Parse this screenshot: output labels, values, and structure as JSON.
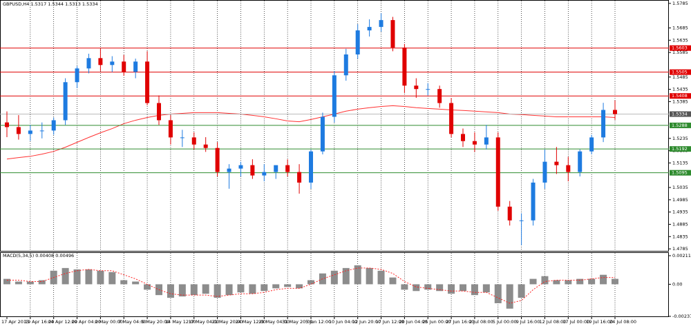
{
  "chart_data": {
    "type": "candlestick",
    "title": "GBPUSD,H4 1.5317 1.5344 1.5313 1.5334",
    "categories": [
      "17 Apr 2013",
      null,
      "19 Apr 16:00",
      null,
      "24 Apr 12:00",
      null,
      "29 Apr 04:00",
      null,
      "2 May 00:00",
      null,
      "7 May 04:00",
      null,
      "9 May 20:00",
      null,
      "14 May 12:00",
      null,
      "17 May 04:00",
      null,
      "21 May 20:00",
      null,
      "24 May 12:00",
      null,
      "29 May 04:00",
      null,
      "31 May 20:00",
      null,
      "5 Jun 12:00",
      null,
      "10 Jun 04:00",
      null,
      "12 Jun 20:00",
      null,
      "17 Jun 12:00",
      null,
      "20 Jun 04:00",
      null,
      "25 Jun 00:00",
      null,
      "27 Jun 16:00",
      null,
      "2 Jul 08:00",
      null,
      "5 Jul 00:00",
      null,
      "9 Jul 16:00",
      null,
      "12 Jul 08:00",
      null,
      "17 Jul 00:00",
      null,
      "19 Jul 16:00",
      null,
      "24 Jul 08:00"
    ],
    "open": [
      1.53,
      1.5281,
      1.5253,
      1.5267,
      1.5267,
      1.5309,
      1.5464,
      1.552,
      1.5562,
      1.5534,
      1.5548,
      1.5506,
      1.5548,
      1.5379,
      1.5309,
      1.5239,
      1.5239,
      1.521,
      1.5196,
      1.5098,
      1.5112,
      1.5126,
      1.5084,
      1.5098,
      1.5126,
      1.5098,
      1.5055,
      1.5182,
      1.5323,
      1.5492,
      1.5577,
      1.5675,
      1.5689,
      1.5717,
      1.5605,
      1.545,
      1.5436,
      1.5436,
      1.5379,
      1.5253,
      1.5224,
      1.521,
      1.5239,
      1.4957,
      1.4901,
      1.4901,
      1.5055,
      1.514,
      1.5126,
      1.5098,
      1.5182,
      1.5239,
      1.5351
    ],
    "high": [
      1.5345,
      1.533,
      1.529,
      1.53,
      1.532,
      1.548,
      1.553,
      1.558,
      1.56,
      1.557,
      1.5575,
      1.556,
      1.559,
      1.541,
      1.533,
      1.527,
      1.526,
      1.524,
      1.522,
      1.513,
      1.514,
      1.515,
      1.513,
      1.512,
      1.515,
      1.513,
      1.519,
      1.534,
      1.551,
      1.56,
      1.57,
      1.572,
      1.5745,
      1.573,
      1.562,
      1.548,
      1.546,
      1.545,
      1.54,
      1.5275,
      1.526,
      1.529,
      1.526,
      1.498,
      1.493,
      1.507,
      1.519,
      1.52,
      1.516,
      1.519,
      1.525,
      1.538,
      1.539
    ],
    "low": [
      1.524,
      1.523,
      1.5225,
      1.5235,
      1.525,
      1.529,
      1.544,
      1.55,
      1.551,
      1.5505,
      1.549,
      1.548,
      1.537,
      1.529,
      1.521,
      1.52,
      1.519,
      1.518,
      1.508,
      1.503,
      1.508,
      1.507,
      1.506,
      1.507,
      1.508,
      1.501,
      1.503,
      1.517,
      1.53,
      1.547,
      1.556,
      1.565,
      1.567,
      1.559,
      1.542,
      1.54,
      1.541,
      1.536,
      1.524,
      1.52,
      1.518,
      1.519,
      1.494,
      1.488,
      1.48,
      1.488,
      1.503,
      1.509,
      1.506,
      1.508,
      1.517,
      1.522,
      1.531
    ],
    "close": [
      1.5281,
      1.5253,
      1.5267,
      1.5267,
      1.5309,
      1.5464,
      1.552,
      1.5562,
      1.5534,
      1.5548,
      1.5506,
      1.5548,
      1.5379,
      1.5309,
      1.5239,
      1.5239,
      1.521,
      1.5196,
      1.5098,
      1.5112,
      1.5126,
      1.5084,
      1.5098,
      1.5126,
      1.5098,
      1.5055,
      1.5182,
      1.5323,
      1.5492,
      1.5577,
      1.5675,
      1.5689,
      1.5717,
      1.5605,
      1.545,
      1.5436,
      1.5436,
      1.5379,
      1.5253,
      1.5224,
      1.521,
      1.5239,
      1.4957,
      1.4901,
      1.4901,
      1.5055,
      1.514,
      1.5126,
      1.5098,
      1.5182,
      1.5239,
      1.5351,
      1.5334
    ],
    "up_color": "#1e7be0",
    "down_color": "#e00000",
    "moving_average": {
      "color": "#ff3030",
      "values": [
        1.5151,
        1.5157,
        1.5162,
        1.5171,
        1.5182,
        1.5199,
        1.5219,
        1.5239,
        1.5258,
        1.5275,
        1.5295,
        1.5309,
        1.532,
        1.5329,
        1.5334,
        1.5337,
        1.534,
        1.534,
        1.534,
        1.5337,
        1.5334,
        1.5329,
        1.5323,
        1.5315,
        1.5306,
        1.5303,
        1.5312,
        1.5323,
        1.5334,
        1.5346,
        1.5354,
        1.536,
        1.5365,
        1.5368,
        1.5365,
        1.536,
        1.5357,
        1.5354,
        1.5351,
        1.5349,
        1.5346,
        1.5343,
        1.534,
        1.5334,
        1.5332,
        1.5329,
        1.5326,
        1.5323,
        1.5323,
        1.5323,
        1.5323,
        1.5323,
        1.532
      ]
    },
    "levels": [
      {
        "value": 1.5603,
        "color": "#e00000"
      },
      {
        "value": 1.5505,
        "color": "#e00000"
      },
      {
        "value": 1.5408,
        "color": "#e00000"
      },
      {
        "value": 1.5288,
        "color": "#2e8b2e"
      },
      {
        "value": 1.5192,
        "color": "#2e8b2e"
      },
      {
        "value": 1.5095,
        "color": "#2e8b2e"
      }
    ],
    "last_price": 1.5334,
    "ylim": [
      1.4774,
      1.5796
    ],
    "yticks": [
      1.5785,
      1.5685,
      1.5635,
      1.5585,
      1.5485,
      1.5435,
      1.5385,
      1.5235,
      1.5185,
      1.5135,
      1.5035,
      1.4985,
      1.4935,
      1.4885,
      1.4835,
      1.4785
    ],
    "indicator": {
      "title": "MACD(5,34,5) 0.00408 0.00496",
      "histogram_color": "#8c8c8c",
      "signal_color": "#ff2020",
      "histogram": [
        0.0004,
        0.0002,
        0.0002,
        0.0003,
        0.001,
        0.0012,
        0.0011,
        0.0011,
        0.001,
        0.0009,
        0.0003,
        0.0002,
        -0.0004,
        -0.0008,
        -0.001,
        -0.0009,
        -0.0008,
        -0.0007,
        -0.001,
        -0.0008,
        -0.0006,
        -0.0007,
        -0.0005,
        -0.0003,
        -0.0002,
        -0.0003,
        0.0003,
        0.0008,
        0.001,
        0.0012,
        0.0014,
        0.0012,
        0.001,
        0.0005,
        -0.0004,
        -0.0005,
        -0.0004,
        -0.0005,
        -0.0007,
        -0.0005,
        -0.0008,
        -0.0006,
        -0.0014,
        -0.0018,
        -0.001,
        0.0004,
        0.0006,
        0.0003,
        0.0003,
        0.0004,
        0.0004,
        0.0007,
        0.0004
      ],
      "signal": [
        0.0003,
        0.0003,
        0.0002,
        0.0002,
        0.0005,
        0.0008,
        0.001,
        0.0011,
        0.001,
        0.001,
        0.0007,
        0.0004,
        0.0,
        -0.0004,
        -0.0007,
        -0.0008,
        -0.0008,
        -0.0008,
        -0.0009,
        -0.0008,
        -0.0007,
        -0.0007,
        -0.0006,
        -0.0004,
        -0.0003,
        -0.0003,
        0.0,
        0.0004,
        0.0007,
        0.001,
        0.0012,
        0.0012,
        0.0011,
        0.0008,
        0.0002,
        -0.0002,
        -0.0003,
        -0.0004,
        -0.0005,
        -0.0005,
        -0.0006,
        -0.0006,
        -0.001,
        -0.0014,
        -0.0012,
        -0.0004,
        0.0002,
        0.0003,
        0.0003,
        0.0003,
        0.0004,
        0.0005,
        0.0005
      ],
      "ylim": [
        -0.00237,
        0.00211
      ],
      "yticks": [
        0.00211,
        {
          "value": 0,
          "label": "0.00"
        },
        -0.00237
      ]
    }
  }
}
